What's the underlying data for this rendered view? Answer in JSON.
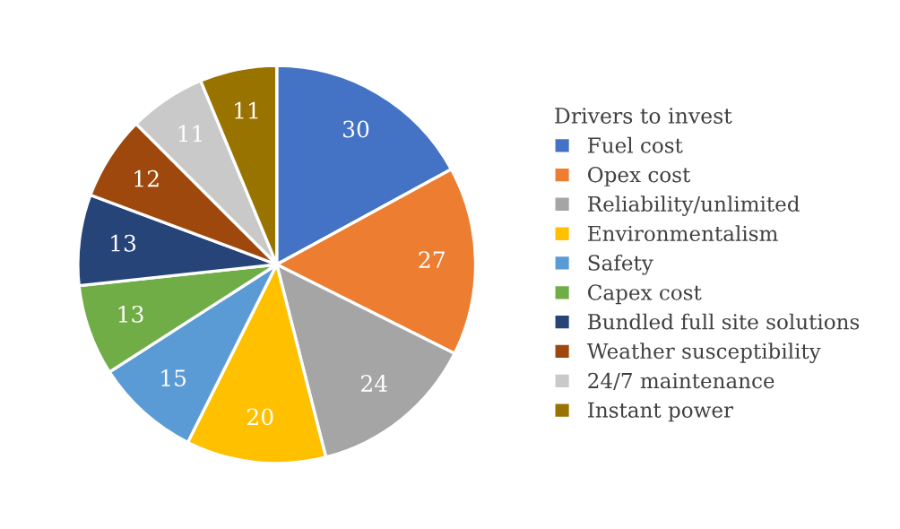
{
  "chart_data": {
    "type": "pie",
    "legend_title": "Drivers to invest",
    "categories": [
      "Fuel cost",
      "Opex cost",
      "Reliability/unlimited",
      "Environmentalism",
      "Safety",
      "Capex cost",
      "Bundled full site solutions",
      "Weather susceptibility",
      "24/7 maintenance",
      "Instant power"
    ],
    "values": [
      30,
      27,
      24,
      20,
      15,
      13,
      13,
      12,
      11,
      11
    ],
    "colors": [
      "#4472c4",
      "#ed7d31",
      "#a5a5a5",
      "#ffc000",
      "#5b9bd5",
      "#70ad47",
      "#264478",
      "#9e480e",
      "#c9c9c9",
      "#997300"
    ],
    "data_labels": true,
    "legend": "right"
  }
}
